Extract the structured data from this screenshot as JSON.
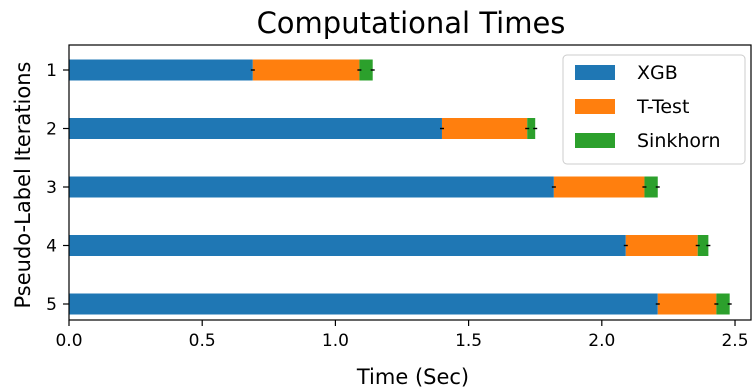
{
  "chart_data": {
    "type": "bar",
    "orientation": "horizontal",
    "stacked": true,
    "title": "Computational Times",
    "xlabel": "Time (Sec)",
    "ylabel": "Pseudo-Label Iterations",
    "categories": [
      "1",
      "2",
      "3",
      "4",
      "5"
    ],
    "xlim": [
      0,
      2.56
    ],
    "xticks": [
      "0.0",
      "0.5",
      "1.0",
      "1.5",
      "2.0",
      "2.5"
    ],
    "xtick_values": [
      0,
      0.5,
      1.0,
      1.5,
      2.0,
      2.5
    ],
    "legend_position": "top-right",
    "grid": false,
    "series": [
      {
        "name": "XGB",
        "color": "#1f77b4",
        "values": [
          0.69,
          1.4,
          1.82,
          2.09,
          2.21
        ]
      },
      {
        "name": "T-Test",
        "color": "#ff7f0e",
        "values": [
          0.4,
          0.32,
          0.34,
          0.27,
          0.22
        ]
      },
      {
        "name": "Sinkhorn",
        "color": "#2ca02c",
        "values": [
          0.05,
          0.03,
          0.05,
          0.04,
          0.05
        ]
      }
    ]
  }
}
